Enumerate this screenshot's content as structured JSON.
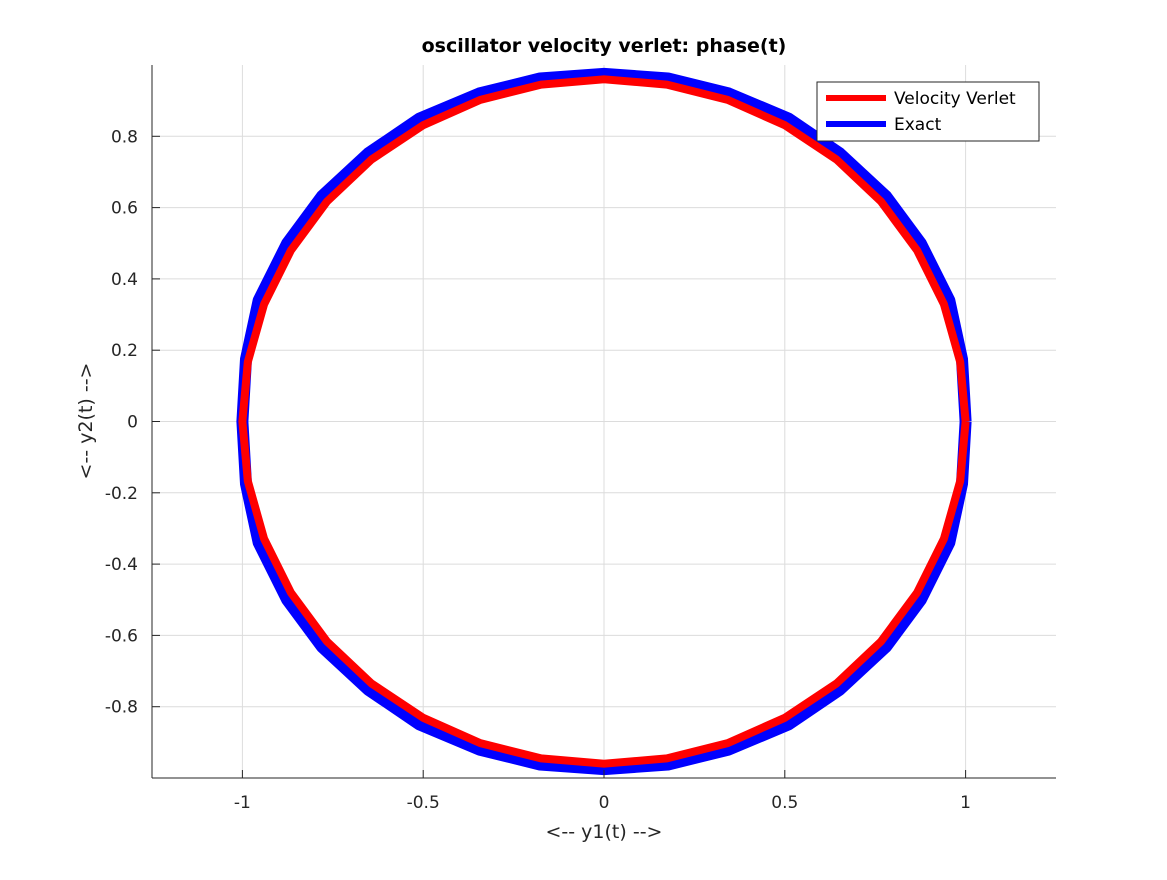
{
  "chart_data": {
    "type": "line",
    "title": "oscillator velocity verlet: phase(t)",
    "xlabel": "<-- y1(t) -->",
    "ylabel": "<-- y2(t) -->",
    "xlim": [
      -1.25,
      1.25
    ],
    "ylim": [
      -1.0,
      1.0
    ],
    "grid": true,
    "legend_position": "top-right",
    "x_ticks": [
      -1,
      -0.5,
      0,
      0.5,
      1
    ],
    "x_tick_labels": [
      "-1",
      "-0.5",
      "0",
      "0.5",
      "1"
    ],
    "y_ticks": [
      -0.8,
      -0.6,
      -0.4,
      -0.2,
      0,
      0.2,
      0.4,
      0.6,
      0.8
    ],
    "y_tick_labels": [
      "-0.8",
      "-0.6",
      "-0.4",
      "-0.2",
      "0",
      "0.2",
      "0.4",
      "0.6",
      "0.8"
    ],
    "series": [
      {
        "name": "Velocity Verlet",
        "color": "#ff0000",
        "x": [
          1.0,
          0.985,
          0.94,
          0.866,
          0.766,
          0.643,
          0.5,
          0.342,
          0.174,
          0.0,
          -0.174,
          -0.342,
          -0.5,
          -0.643,
          -0.766,
          -0.866,
          -0.94,
          -0.985,
          -1.0,
          -0.985,
          -0.94,
          -0.866,
          -0.766,
          -0.643,
          -0.5,
          -0.342,
          -0.174,
          0.0,
          0.174,
          0.342,
          0.5,
          0.643,
          0.766,
          0.866,
          0.94,
          0.985,
          1.0
        ],
        "y": [
          0.0,
          0.167,
          0.329,
          0.48,
          0.617,
          0.735,
          0.831,
          0.902,
          0.945,
          0.96,
          0.945,
          0.902,
          0.831,
          0.735,
          0.617,
          0.48,
          0.329,
          0.167,
          0.0,
          -0.167,
          -0.329,
          -0.48,
          -0.617,
          -0.735,
          -0.831,
          -0.902,
          -0.945,
          -0.96,
          -0.945,
          -0.902,
          -0.831,
          -0.735,
          -0.617,
          -0.48,
          -0.329,
          -0.167,
          0.0
        ]
      },
      {
        "name": "Exact",
        "color": "#0000ff",
        "x": [
          1.0,
          0.99,
          0.955,
          0.876,
          0.78,
          0.652,
          0.51,
          0.345,
          0.177,
          0.0,
          -0.177,
          -0.345,
          -0.51,
          -0.652,
          -0.78,
          -0.876,
          -0.955,
          -0.99,
          -1.0,
          -0.99,
          -0.955,
          -0.876,
          -0.78,
          -0.652,
          -0.51,
          -0.345,
          -0.177,
          0.0,
          0.177,
          0.345,
          0.51,
          0.652,
          0.78,
          0.876,
          0.955,
          0.99,
          1.0
        ],
        "y": [
          0.0,
          0.175,
          0.34,
          0.5,
          0.632,
          0.752,
          0.85,
          0.92,
          0.962,
          0.975,
          0.962,
          0.92,
          0.85,
          0.752,
          0.632,
          0.5,
          0.34,
          0.175,
          0.0,
          -0.175,
          -0.34,
          -0.5,
          -0.632,
          -0.752,
          -0.85,
          -0.92,
          -0.962,
          -0.975,
          -0.962,
          -0.92,
          -0.85,
          -0.752,
          -0.632,
          -0.5,
          -0.34,
          -0.175,
          0.0
        ]
      }
    ]
  }
}
